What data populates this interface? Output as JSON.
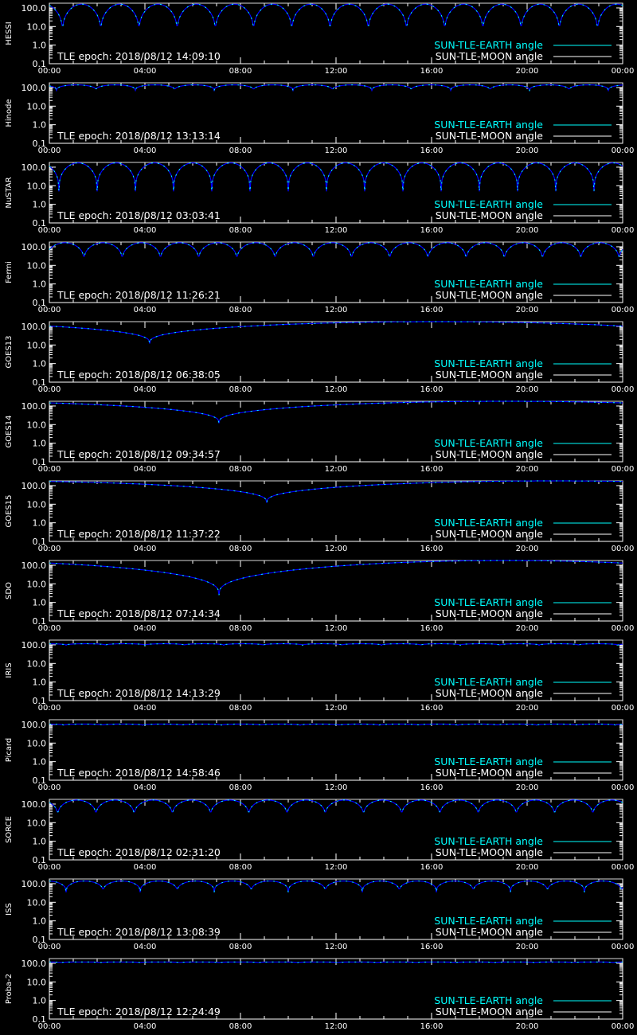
{
  "colors": {
    "background": "#000000",
    "axes": "#ffffff",
    "earth_angle": "#00ffff",
    "moon_angle": "#ffffff",
    "model_curve": "#0000ff",
    "reference_line": "#d8d8d8"
  },
  "legend": {
    "earth_label": "SUN-TLE-EARTH angle",
    "moon_label": "SUN-TLE-MOON angle",
    "placement": "bottom-right"
  },
  "chart_data": [
    {
      "type": "line",
      "panel": "HESSI",
      "epoch_label": "TLE epoch: 2018/08/12 14:09:10",
      "yscale": "log",
      "ylim": [
        0.1,
        180
      ],
      "yticks": [
        "0.1",
        "1.0",
        "10.0",
        "100.0"
      ],
      "xticks": [
        "00:00",
        "04:00",
        "08:00",
        "12:00",
        "16:00",
        "20:00",
        "00:00"
      ],
      "xlim_hours": [
        0,
        24
      ],
      "reference_y": 180,
      "curve": {
        "period_hours": 1.6,
        "phase_hours": 0.55,
        "max": 160,
        "min": 3.5
      }
    },
    {
      "type": "line",
      "panel": "Hinode",
      "epoch_label": "TLE epoch: 2018/08/12 13:13:14",
      "yscale": "log",
      "ylim": [
        0.1,
        180
      ],
      "yticks": [
        "0.1",
        "1.0",
        "10.0",
        "100.0"
      ],
      "xticks": [
        "00:00",
        "04:00",
        "08:00",
        "12:00",
        "16:00",
        "20:00",
        "00:00"
      ],
      "xlim_hours": [
        0,
        24
      ],
      "reference_y": 180,
      "curve": {
        "period_hours": 1.65,
        "phase_hours": 0.3,
        "max": 140,
        "min": 70
      }
    },
    {
      "type": "line",
      "panel": "NuSTAR",
      "epoch_label": "TLE epoch: 2018/08/12 03:03:41",
      "yscale": "log",
      "ylim": [
        0.1,
        180
      ],
      "yticks": [
        "0.1",
        "1.0",
        "10.0",
        "100.0"
      ],
      "xticks": [
        "00:00",
        "04:00",
        "08:00",
        "12:00",
        "16:00",
        "20:00",
        "00:00"
      ],
      "xlim_hours": [
        0,
        24
      ],
      "reference_y": 180,
      "curve": {
        "period_hours": 1.6,
        "phase_hours": 0.4,
        "max": 170,
        "min": 5
      }
    },
    {
      "type": "line",
      "panel": "Fermi",
      "epoch_label": "TLE epoch: 2018/08/12 11:26:21",
      "yscale": "log",
      "ylim": [
        0.1,
        180
      ],
      "yticks": [
        "0.1",
        "1.0",
        "10.0",
        "100.0"
      ],
      "xticks": [
        "00:00",
        "04:00",
        "08:00",
        "12:00",
        "16:00",
        "20:00",
        "00:00"
      ],
      "xlim_hours": [
        0,
        24
      ],
      "reference_y": 180,
      "curve": {
        "period_hours": 1.6,
        "phase_hours": 1.45,
        "max": 165,
        "min": 15
      }
    },
    {
      "type": "line",
      "panel": "GOES13",
      "epoch_label": "TLE epoch: 2018/08/12 06:38:05",
      "yscale": "log",
      "ylim": [
        0.1,
        180
      ],
      "yticks": [
        "0.1",
        "1.0",
        "10.0",
        "100.0"
      ],
      "xticks": [
        "00:00",
        "04:00",
        "08:00",
        "12:00",
        "16:00",
        "20:00",
        "00:00"
      ],
      "xlim_hours": [
        0,
        24
      ],
      "reference_y": 180,
      "curve": {
        "period_hours": 24,
        "phase_hours": 4.2,
        "max": 180,
        "min": 12
      }
    },
    {
      "type": "line",
      "panel": "GOES14",
      "epoch_label": "TLE epoch: 2018/08/12 09:34:57",
      "yscale": "log",
      "ylim": [
        0.1,
        180
      ],
      "yticks": [
        "0.1",
        "1.0",
        "10.0",
        "100.0"
      ],
      "xticks": [
        "00:00",
        "04:00",
        "08:00",
        "12:00",
        "16:00",
        "20:00",
        "00:00"
      ],
      "xlim_hours": [
        0,
        24
      ],
      "reference_y": 180,
      "curve": {
        "period_hours": 24,
        "phase_hours": 7.1,
        "max": 180,
        "min": 12
      }
    },
    {
      "type": "line",
      "panel": "GOES15",
      "epoch_label": "TLE epoch: 2018/08/12 11:37:22",
      "yscale": "log",
      "ylim": [
        0.1,
        180
      ],
      "yticks": [
        "0.1",
        "1.0",
        "10.0",
        "100.0"
      ],
      "xticks": [
        "00:00",
        "04:00",
        "08:00",
        "12:00",
        "16:00",
        "20:00",
        "00:00"
      ],
      "xlim_hours": [
        0,
        24
      ],
      "reference_y": 180,
      "curve": {
        "period_hours": 24,
        "phase_hours": 9.1,
        "max": 180,
        "min": 12
      }
    },
    {
      "type": "line",
      "panel": "SDO",
      "epoch_label": "TLE epoch: 2018/08/12 07:14:34",
      "yscale": "log",
      "ylim": [
        0.1,
        180
      ],
      "yticks": [
        "0.1",
        "1.0",
        "10.0",
        "100.0"
      ],
      "xticks": [
        "00:00",
        "04:00",
        "08:00",
        "12:00",
        "16:00",
        "20:00",
        "00:00"
      ],
      "xlim_hours": [
        0,
        24
      ],
      "reference_y": 180,
      "curve": {
        "period_hours": 24,
        "phase_hours": 7.1,
        "max": 180,
        "min": 2.5
      }
    },
    {
      "type": "line",
      "panel": "IRIS",
      "epoch_label": "TLE epoch: 2018/08/12 14:13:29",
      "yscale": "log",
      "ylim": [
        0.1,
        180
      ],
      "yticks": [
        "0.1",
        "1.0",
        "10.0",
        "100.0"
      ],
      "xticks": [
        "00:00",
        "04:00",
        "08:00",
        "12:00",
        "16:00",
        "20:00",
        "00:00"
      ],
      "xlim_hours": [
        0,
        24
      ],
      "reference_y": 180,
      "curve": {
        "period_hours": 1.65,
        "phase_hours": 0.7,
        "max": 115,
        "min": 95
      }
    },
    {
      "type": "line",
      "panel": "Picard",
      "epoch_label": "TLE epoch: 2018/08/12 14:58:46",
      "yscale": "log",
      "ylim": [
        0.1,
        180
      ],
      "yticks": [
        "0.1",
        "1.0",
        "10.0",
        "100.0"
      ],
      "xticks": [
        "00:00",
        "04:00",
        "08:00",
        "12:00",
        "16:00",
        "20:00",
        "00:00"
      ],
      "xlim_hours": [
        0,
        24
      ],
      "reference_y": 180,
      "curve": {
        "period_hours": 1.65,
        "phase_hours": 0.6,
        "max": 105,
        "min": 92
      }
    },
    {
      "type": "line",
      "panel": "SORCE",
      "epoch_label": "TLE epoch: 2018/08/12 02:31:20",
      "yscale": "log",
      "ylim": [
        0.1,
        180
      ],
      "yticks": [
        "0.1",
        "1.0",
        "10.0",
        "100.0"
      ],
      "xticks": [
        "00:00",
        "04:00",
        "08:00",
        "12:00",
        "16:00",
        "20:00",
        "00:00"
      ],
      "xlim_hours": [
        0,
        24
      ],
      "reference_y": 180,
      "curve": {
        "period_hours": 1.6,
        "phase_hours": 0.35,
        "max": 165,
        "min": 20
      }
    },
    {
      "type": "line",
      "panel": "ISS",
      "epoch_label": "TLE epoch: 2018/08/12 13:08:39",
      "yscale": "log",
      "ylim": [
        0.1,
        180
      ],
      "yticks": [
        "0.1",
        "1.0",
        "10.0",
        "100.0"
      ],
      "xticks": [
        "00:00",
        "04:00",
        "08:00",
        "12:00",
        "16:00",
        "20:00",
        "00:00"
      ],
      "xlim_hours": [
        0,
        24
      ],
      "reference_y": 180,
      "curve": {
        "period_hours": 1.55,
        "phase_hours": 0.7,
        "max": 140,
        "min": 35
      }
    },
    {
      "type": "line",
      "panel": "Proba-2",
      "epoch_label": "TLE epoch: 2018/08/12 12:24:49",
      "yscale": "log",
      "ylim": [
        0.1,
        180
      ],
      "yticks": [
        "0.1",
        "1.0",
        "10.0",
        "100.0"
      ],
      "xticks": [
        "00:00",
        "04:00",
        "08:00",
        "12:00",
        "16:00",
        "20:00",
        "00:00"
      ],
      "xlim_hours": [
        0,
        24
      ],
      "reference_y": 180,
      "curve": {
        "period_hours": 1.65,
        "phase_hours": 0.5,
        "max": 118,
        "min": 110
      }
    }
  ]
}
